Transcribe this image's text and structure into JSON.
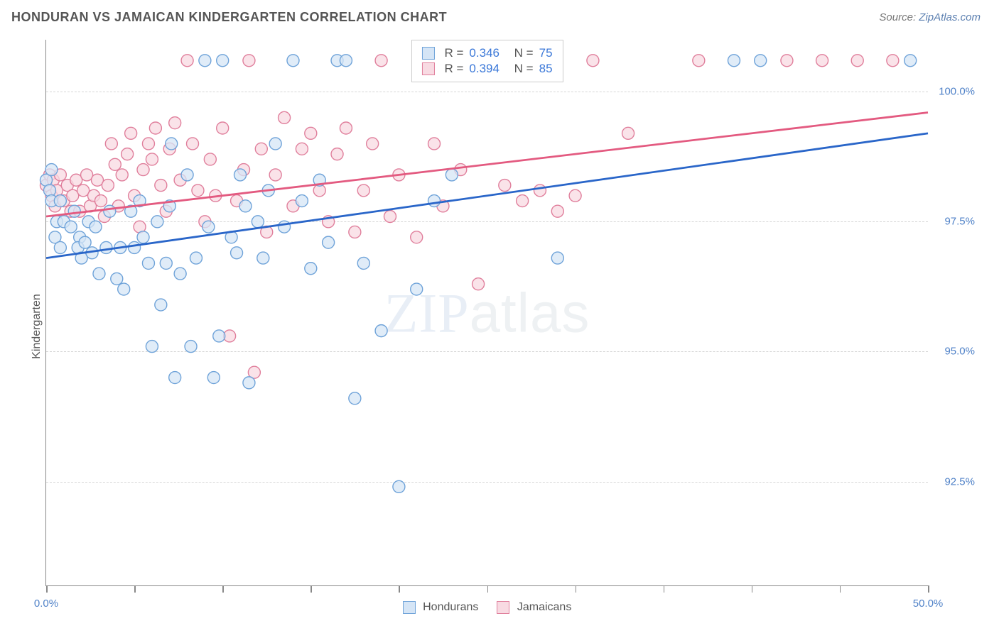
{
  "header": {
    "title": "HONDURAN VS JAMAICAN KINDERGARTEN CORRELATION CHART",
    "source_prefix": "Source: ",
    "source_name": "ZipAtlas.com"
  },
  "chart": {
    "type": "scatter",
    "ylabel": "Kindergarten",
    "watermark_a": "ZIP",
    "watermark_b": "atlas",
    "xlim": [
      0,
      50
    ],
    "ylim": [
      90.5,
      101.0
    ],
    "y_gridlines": [
      92.5,
      95.0,
      97.5,
      100.0
    ],
    "x_tick_positions": [
      0,
      5,
      10,
      15,
      20,
      25,
      30,
      35,
      40,
      45,
      50
    ],
    "x_tick_labels": {
      "0": "0.0%",
      "50": "50.0%"
    },
    "y_tick_labels": {
      "92.5": "92.5%",
      "95.0": "95.0%",
      "97.5": "97.5%",
      "100.0": "100.0%"
    },
    "background_color": "#ffffff",
    "grid_color": "#d5d5d5",
    "axis_color": "#888888",
    "marker_radius": 8.5,
    "marker_stroke_width": 1.4,
    "line_width": 2.8,
    "series": {
      "hondurans": {
        "label": "Hondurans",
        "fill": "#d5e5f6",
        "stroke": "#6fa3d9",
        "line_color": "#2a66c9",
        "r_value": "0.346",
        "n_value": "75",
        "trend": {
          "x1": 0,
          "y1": 96.8,
          "x2": 50,
          "y2": 99.2
        },
        "points": [
          [
            0,
            98.3
          ],
          [
            0.2,
            98.1
          ],
          [
            0.3,
            97.9
          ],
          [
            0.3,
            98.5
          ],
          [
            0.5,
            97.2
          ],
          [
            0.6,
            97.5
          ],
          [
            0.8,
            97.9
          ],
          [
            0.8,
            97.0
          ],
          [
            1.0,
            97.5
          ],
          [
            1.4,
            97.4
          ],
          [
            1.6,
            97.7
          ],
          [
            1.9,
            97.2
          ],
          [
            1.8,
            97.0
          ],
          [
            2.0,
            96.8
          ],
          [
            2.2,
            97.1
          ],
          [
            2.4,
            97.5
          ],
          [
            2.6,
            96.9
          ],
          [
            2.8,
            97.4
          ],
          [
            3.0,
            96.5
          ],
          [
            3.4,
            97.0
          ],
          [
            3.6,
            97.7
          ],
          [
            4.0,
            96.4
          ],
          [
            4.2,
            97.0
          ],
          [
            4.4,
            96.2
          ],
          [
            4.8,
            97.7
          ],
          [
            5.0,
            97.0
          ],
          [
            5.3,
            97.9
          ],
          [
            5.5,
            97.2
          ],
          [
            5.8,
            96.7
          ],
          [
            6.0,
            95.1
          ],
          [
            6.3,
            97.5
          ],
          [
            6.5,
            95.9
          ],
          [
            6.8,
            96.7
          ],
          [
            7.0,
            97.8
          ],
          [
            7.1,
            99.0
          ],
          [
            7.3,
            94.5
          ],
          [
            7.6,
            96.5
          ],
          [
            8.0,
            98.4
          ],
          [
            8.2,
            95.1
          ],
          [
            8.5,
            96.8
          ],
          [
            9.0,
            100.6
          ],
          [
            9.2,
            97.4
          ],
          [
            9.5,
            94.5
          ],
          [
            9.8,
            95.3
          ],
          [
            10.0,
            100.6
          ],
          [
            10.5,
            97.2
          ],
          [
            10.8,
            96.9
          ],
          [
            11.0,
            98.4
          ],
          [
            11.3,
            97.8
          ],
          [
            11.5,
            94.4
          ],
          [
            12.0,
            97.5
          ],
          [
            12.3,
            96.8
          ],
          [
            12.6,
            98.1
          ],
          [
            13.0,
            99.0
          ],
          [
            13.5,
            97.4
          ],
          [
            14.0,
            100.6
          ],
          [
            14.5,
            97.9
          ],
          [
            15.0,
            96.6
          ],
          [
            15.5,
            98.3
          ],
          [
            16.0,
            97.1
          ],
          [
            16.5,
            100.6
          ],
          [
            17.0,
            100.6
          ],
          [
            17.5,
            94.1
          ],
          [
            18.0,
            96.7
          ],
          [
            19.0,
            95.4
          ],
          [
            20.0,
            92.4
          ],
          [
            21.0,
            96.2
          ],
          [
            22.0,
            97.9
          ],
          [
            23.0,
            98.4
          ],
          [
            24.0,
            100.6
          ],
          [
            26.0,
            100.6
          ],
          [
            29.0,
            96.8
          ],
          [
            39.0,
            100.6
          ],
          [
            40.5,
            100.6
          ],
          [
            49.0,
            100.6
          ]
        ]
      },
      "jamaicans": {
        "label": "Jamaicans",
        "fill": "#f8dae2",
        "stroke": "#e07f9c",
        "line_color": "#e35a80",
        "r_value": "0.394",
        "n_value": "85",
        "trend": {
          "x1": 0,
          "y1": 97.6,
          "x2": 50,
          "y2": 99.6
        },
        "points": [
          [
            0,
            98.2
          ],
          [
            0.2,
            98.4
          ],
          [
            0.3,
            98.0
          ],
          [
            0.4,
            98.3
          ],
          [
            0.5,
            97.8
          ],
          [
            0.6,
            98.1
          ],
          [
            0.8,
            98.4
          ],
          [
            1.0,
            97.9
          ],
          [
            1.2,
            98.2
          ],
          [
            1.4,
            97.7
          ],
          [
            1.5,
            98.0
          ],
          [
            1.7,
            98.3
          ],
          [
            1.9,
            97.7
          ],
          [
            2.1,
            98.1
          ],
          [
            2.3,
            98.4
          ],
          [
            2.5,
            97.8
          ],
          [
            2.7,
            98.0
          ],
          [
            2.9,
            98.3
          ],
          [
            3.1,
            97.9
          ],
          [
            3.3,
            97.6
          ],
          [
            3.5,
            98.2
          ],
          [
            3.7,
            99.0
          ],
          [
            3.9,
            98.6
          ],
          [
            4.1,
            97.8
          ],
          [
            4.3,
            98.4
          ],
          [
            4.6,
            98.8
          ],
          [
            4.8,
            99.2
          ],
          [
            5.0,
            98.0
          ],
          [
            5.3,
            97.4
          ],
          [
            5.5,
            98.5
          ],
          [
            5.8,
            99.0
          ],
          [
            6.0,
            98.7
          ],
          [
            6.2,
            99.3
          ],
          [
            6.5,
            98.2
          ],
          [
            6.8,
            97.7
          ],
          [
            7.0,
            98.9
          ],
          [
            7.3,
            99.4
          ],
          [
            7.6,
            98.3
          ],
          [
            8.0,
            100.6
          ],
          [
            8.3,
            99.0
          ],
          [
            8.6,
            98.1
          ],
          [
            9.0,
            97.5
          ],
          [
            9.3,
            98.7
          ],
          [
            9.6,
            98.0
          ],
          [
            10.0,
            99.3
          ],
          [
            10.4,
            95.3
          ],
          [
            10.8,
            97.9
          ],
          [
            11.2,
            98.5
          ],
          [
            11.5,
            100.6
          ],
          [
            11.8,
            94.6
          ],
          [
            12.2,
            98.9
          ],
          [
            12.5,
            97.3
          ],
          [
            13.0,
            98.4
          ],
          [
            13.5,
            99.5
          ],
          [
            14.0,
            97.8
          ],
          [
            14.5,
            98.9
          ],
          [
            15.0,
            99.2
          ],
          [
            15.5,
            98.1
          ],
          [
            16.0,
            97.5
          ],
          [
            16.5,
            98.8
          ],
          [
            17.0,
            99.3
          ],
          [
            17.5,
            97.3
          ],
          [
            18.0,
            98.1
          ],
          [
            18.5,
            99.0
          ],
          [
            19.0,
            100.6
          ],
          [
            19.5,
            97.6
          ],
          [
            20.0,
            98.4
          ],
          [
            21.0,
            97.2
          ],
          [
            22.0,
            99.0
          ],
          [
            22.5,
            97.8
          ],
          [
            23.5,
            98.5
          ],
          [
            24.5,
            96.3
          ],
          [
            25.0,
            100.6
          ],
          [
            26.0,
            98.2
          ],
          [
            27.0,
            97.9
          ],
          [
            28.0,
            98.1
          ],
          [
            29.0,
            97.7
          ],
          [
            30.0,
            98.0
          ],
          [
            31.0,
            100.6
          ],
          [
            33.0,
            99.2
          ],
          [
            37.0,
            100.6
          ],
          [
            42.0,
            100.6
          ],
          [
            44.0,
            100.6
          ],
          [
            46.0,
            100.6
          ],
          [
            48.0,
            100.6
          ]
        ]
      }
    },
    "legend_top": {
      "r_label": "R =",
      "n_label": "N ="
    }
  }
}
